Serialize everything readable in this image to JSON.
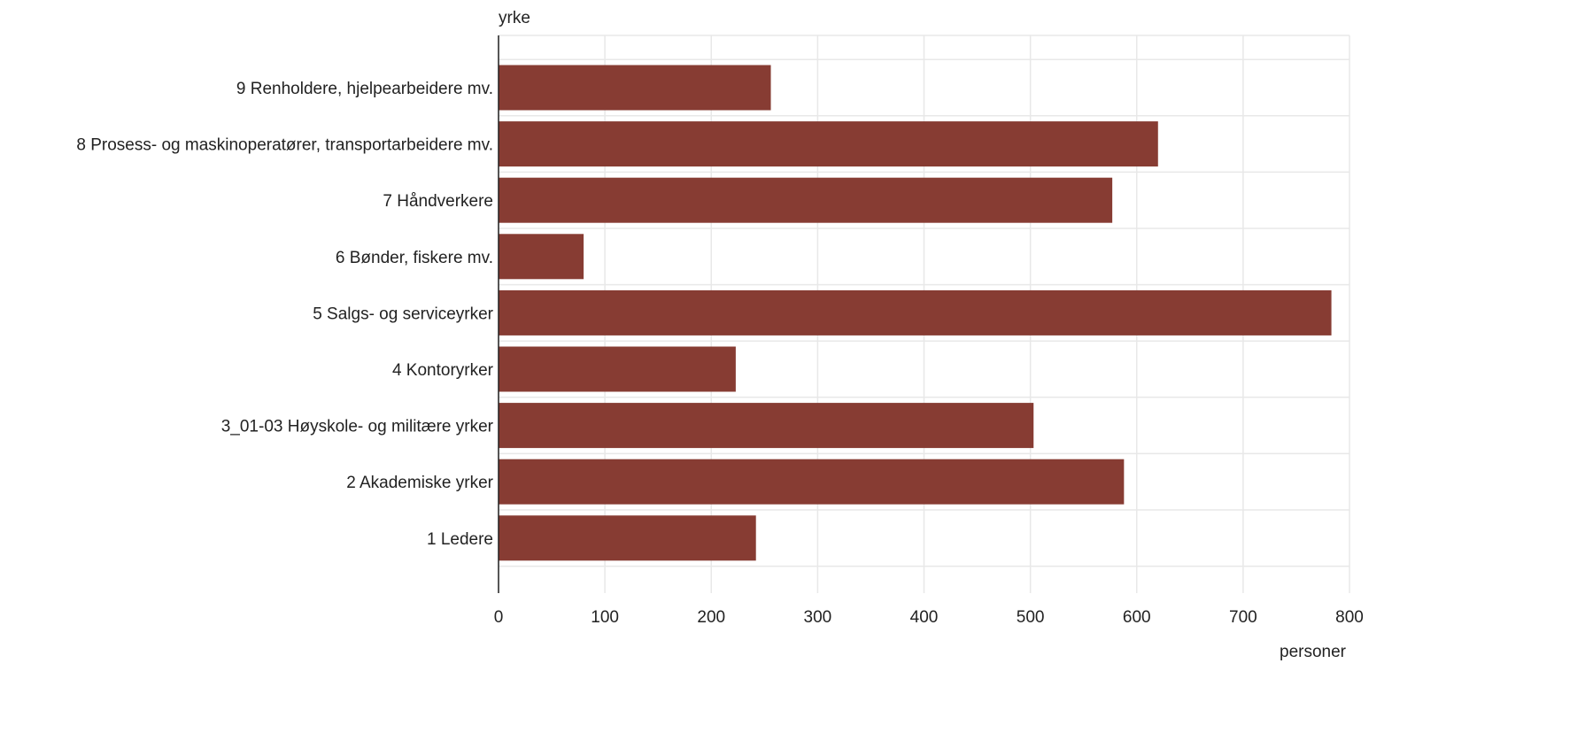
{
  "chart_data": {
    "type": "bar",
    "orientation": "horizontal",
    "ylabel": "yrke",
    "xlabel": "personer",
    "xlim": [
      0,
      800
    ],
    "x_ticks": [
      0,
      100,
      200,
      300,
      400,
      500,
      600,
      700,
      800
    ],
    "grid": true,
    "bar_color": "#873c33",
    "categories": [
      "9 Renholdere, hjelpearbeidere mv.",
      "8 Prosess- og maskinoperatører, transportarbeidere mv.",
      "7 Håndverkere",
      "6 Bønder, fiskere mv.",
      "5 Salgs- og serviceyrker",
      "4 Kontoryrker",
      "3_01-03 Høyskole- og militære yrker",
      "2 Akademiske yrker",
      "1 Ledere"
    ],
    "values": [
      256,
      620,
      577,
      80,
      783,
      223,
      503,
      588,
      242
    ]
  }
}
